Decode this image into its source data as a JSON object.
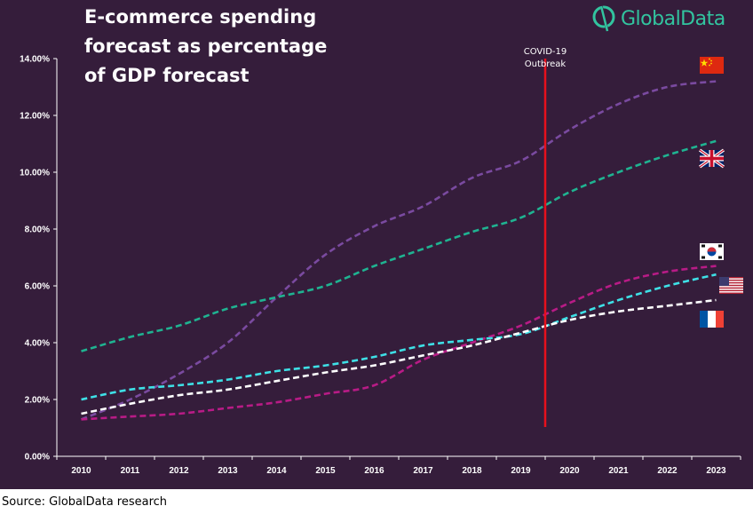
{
  "title_lines": [
    "E-commerce spending",
    "forecast as percentage",
    "of GDP forecast"
  ],
  "logo": {
    "text": "GlobalData",
    "color": "#32c49f"
  },
  "source": "Source: GlobalData research",
  "colors": {
    "background": "#351d3b",
    "axis": "#ffffff",
    "covid_line": "#e8101c"
  },
  "chart_data": {
    "type": "line",
    "title": "E-commerce spending forecast as percentage of GDP forecast",
    "x": [
      2010,
      2011,
      2012,
      2013,
      2014,
      2015,
      2016,
      2017,
      2018,
      2019,
      2020,
      2021,
      2022,
      2023
    ],
    "x_tick_labels": [
      "2010",
      "2011",
      "2012",
      "2013",
      "2014",
      "2015",
      "2016",
      "2017",
      "2018",
      "2019",
      "2020",
      "2021",
      "2022",
      "2023"
    ],
    "ylim": [
      0,
      14
    ],
    "y_ticks": [
      0,
      2,
      4,
      6,
      8,
      10,
      12,
      14
    ],
    "y_tick_labels": [
      "0.00%",
      "2.00%",
      "4.00%",
      "6.00%",
      "8.00%",
      "10.00%",
      "12.00%",
      "14.00%"
    ],
    "grid": false,
    "line_style": "dashed",
    "series": [
      {
        "flag": "china",
        "color": "#7a4aa0",
        "values": [
          1.3,
          2.0,
          2.9,
          4.0,
          5.6,
          7.1,
          8.1,
          8.8,
          9.8,
          10.4,
          11.5,
          12.4,
          13.0,
          13.2
        ]
      },
      {
        "flag": "united-kingdom",
        "color": "#1fb391",
        "values": [
          3.7,
          4.2,
          4.6,
          5.2,
          5.6,
          6.0,
          6.7,
          7.3,
          7.9,
          8.4,
          9.3,
          10.0,
          10.6,
          11.1
        ]
      },
      {
        "flag": "south-korea",
        "color": "#b81b86",
        "values": [
          1.3,
          1.4,
          1.5,
          1.7,
          1.9,
          2.2,
          2.5,
          3.4,
          4.0,
          4.6,
          5.4,
          6.1,
          6.5,
          6.7
        ]
      },
      {
        "flag": "united-states",
        "color": "#3ee0e6",
        "values": [
          2.0,
          2.35,
          2.5,
          2.7,
          3.0,
          3.2,
          3.5,
          3.9,
          4.1,
          4.3,
          4.9,
          5.5,
          6.0,
          6.4
        ]
      },
      {
        "flag": "france",
        "color": "#ffffff",
        "values": [
          1.5,
          1.85,
          2.15,
          2.35,
          2.65,
          2.95,
          3.2,
          3.55,
          3.9,
          4.35,
          4.8,
          5.1,
          5.3,
          5.5
        ]
      }
    ],
    "annotation": {
      "label_lines": [
        "COVID-19",
        "Outbreak"
      ],
      "x": 2019.5
    }
  }
}
